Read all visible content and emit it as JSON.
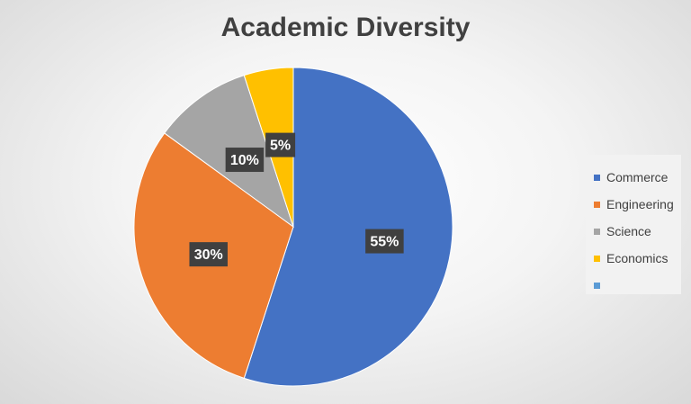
{
  "chart_data": {
    "type": "pie",
    "title": "Academic Diversity",
    "categories": [
      "Commerce",
      "Engineering",
      "Science",
      "Economics",
      ""
    ],
    "values": [
      55,
      30,
      10,
      5,
      0
    ],
    "data_labels": [
      "55%",
      "30%",
      "10%",
      "5%",
      ""
    ],
    "colors": [
      "#4472C4",
      "#ED7D31",
      "#A5A5A5",
      "#FFC000",
      "#5B9BD5"
    ],
    "legend_position": "right",
    "start_angle_deg": 0,
    "direction": "clockwise"
  }
}
